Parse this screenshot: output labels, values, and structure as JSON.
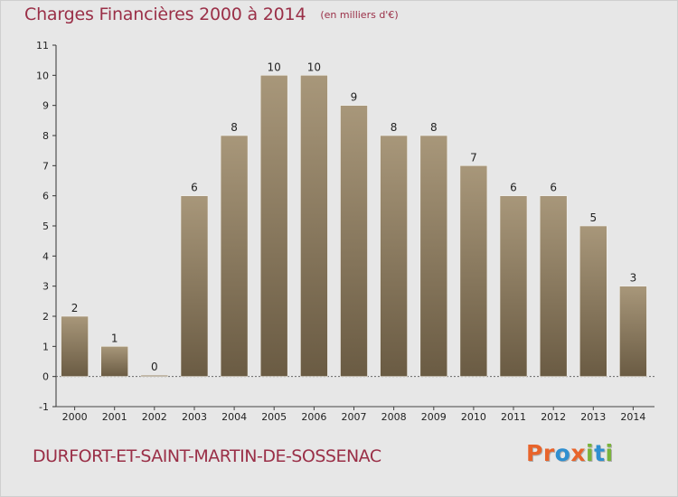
{
  "header": {
    "title": "Charges Financières 2000 à 2014",
    "subtitle": "(en milliers d'€)"
  },
  "footer": {
    "commune": "DURFORT-ET-SAINT-MARTIN-DE-SOSSENAC",
    "logo": {
      "text": "Proxiti",
      "letter_colors": [
        "#e8642b",
        "#e8642b",
        "#2f8fd0",
        "#e8642b",
        "#7ab33b",
        "#2f8fd0",
        "#7ab33b"
      ]
    }
  },
  "colors": {
    "title": "#9a2f47",
    "background": "#e7e7e7",
    "bar_top": "#a8977a",
    "bar_bottom": "#6a5b43"
  },
  "chart_data": {
    "type": "bar",
    "title": "Charges Financières 2000 à 2014",
    "subtitle": "(en milliers d'€)",
    "xlabel": "",
    "ylabel": "",
    "categories": [
      "2000",
      "2001",
      "2002",
      "2003",
      "2004",
      "2005",
      "2006",
      "2007",
      "2008",
      "2009",
      "2010",
      "2011",
      "2012",
      "2013",
      "2014"
    ],
    "values": [
      2,
      1,
      0,
      6,
      8,
      10,
      10,
      9,
      8,
      8,
      7,
      6,
      6,
      5,
      3
    ],
    "ylim": [
      -1,
      11
    ],
    "yticks": [
      -1,
      0,
      1,
      2,
      3,
      4,
      5,
      6,
      7,
      8,
      9,
      10,
      11
    ],
    "grid": false,
    "legend": "none"
  }
}
